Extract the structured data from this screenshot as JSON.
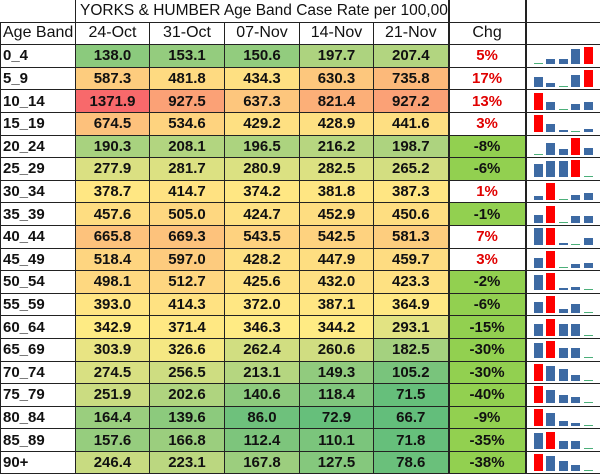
{
  "title": "YORKS & HUMBER Age Band Case Rate per 100,000",
  "colors": {
    "low": "#63be7b",
    "mid": "#ffeb84",
    "high": "#f8696b",
    "chg_negative_bg": "#92d050",
    "chg_positive_text": "#e00000",
    "spark_normal": "#3d6aa3",
    "spark_max": "#ff0000",
    "spark_min": "#4caf7a"
  },
  "chart_data": {
    "type": "heatmap",
    "row_header": "Age Band",
    "columns": [
      "24-Oct",
      "31-Oct",
      "07-Nov",
      "14-Nov",
      "21-Nov"
    ],
    "change_header": "Chg",
    "rows": [
      {
        "band": "0_4",
        "values": [
          138.0,
          153.1,
          150.6,
          197.7,
          207.4
        ],
        "chg": "5%"
      },
      {
        "band": "5_9",
        "values": [
          587.3,
          481.8,
          434.3,
          630.3,
          735.8
        ],
        "chg": "17%"
      },
      {
        "band": "10_14",
        "values": [
          1371.9,
          927.5,
          637.3,
          821.4,
          927.2
        ],
        "chg": "13%"
      },
      {
        "band": "15_19",
        "values": [
          674.5,
          534.6,
          429.2,
          428.9,
          441.6
        ],
        "chg": "3%"
      },
      {
        "band": "20_24",
        "values": [
          190.3,
          208.1,
          196.5,
          216.2,
          198.7
        ],
        "chg": "-8%"
      },
      {
        "band": "25_29",
        "values": [
          277.9,
          281.7,
          280.9,
          282.5,
          265.2
        ],
        "chg": "-6%"
      },
      {
        "band": "30_34",
        "values": [
          378.7,
          414.7,
          374.2,
          381.8,
          387.3
        ],
        "chg": "1%"
      },
      {
        "band": "35_39",
        "values": [
          457.6,
          505.0,
          424.7,
          452.9,
          450.6
        ],
        "chg": "-1%"
      },
      {
        "band": "40_44",
        "values": [
          665.8,
          669.3,
          543.5,
          542.5,
          581.3
        ],
        "chg": "7%"
      },
      {
        "band": "45_49",
        "values": [
          518.4,
          597.0,
          428.2,
          447.9,
          459.7
        ],
        "chg": "3%"
      },
      {
        "band": "50_54",
        "values": [
          498.1,
          512.7,
          425.6,
          432.0,
          423.3
        ],
        "chg": "-2%"
      },
      {
        "band": "55_59",
        "values": [
          393.0,
          414.3,
          372.0,
          387.1,
          364.9
        ],
        "chg": "-6%"
      },
      {
        "band": "60_64",
        "values": [
          342.9,
          371.4,
          346.3,
          344.2,
          293.1
        ],
        "chg": "-15%"
      },
      {
        "band": "65_69",
        "values": [
          303.9,
          326.6,
          262.4,
          260.6,
          182.5
        ],
        "chg": "-30%"
      },
      {
        "band": "70_74",
        "values": [
          274.5,
          256.5,
          213.1,
          149.3,
          105.2
        ],
        "chg": "-30%"
      },
      {
        "band": "75_79",
        "values": [
          251.9,
          202.6,
          140.6,
          118.4,
          71.5
        ],
        "chg": "-40%"
      },
      {
        "band": "80_84",
        "values": [
          164.4,
          139.6,
          86.0,
          72.9,
          66.7
        ],
        "chg": "-9%"
      },
      {
        "band": "85_89",
        "values": [
          157.6,
          166.8,
          112.4,
          110.1,
          71.8
        ],
        "chg": "-35%"
      },
      {
        "band": "90+",
        "values": [
          246.4,
          223.1,
          167.8,
          127.5,
          78.6
        ],
        "chg": "-38%"
      }
    ]
  }
}
